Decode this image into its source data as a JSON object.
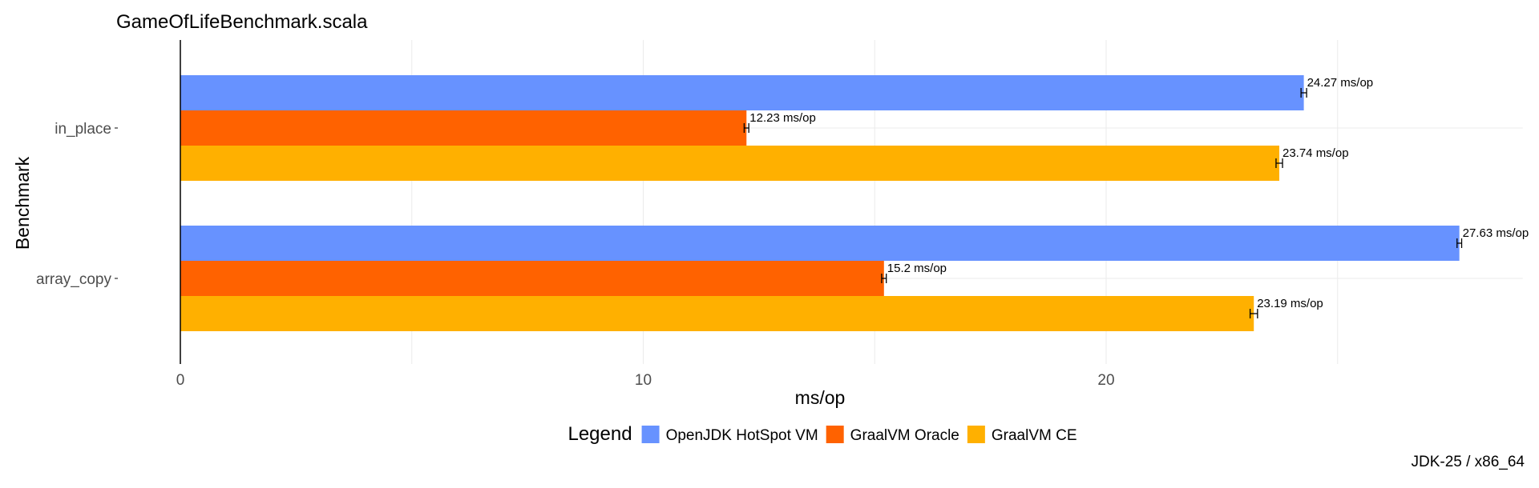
{
  "chart_data": {
    "type": "bar",
    "orientation": "horizontal",
    "title": "GameOfLifeBenchmark.scala",
    "xlabel": "ms/op",
    "ylabel": "Benchmark",
    "xlim": [
      0,
      29
    ],
    "xticks": [
      0,
      10,
      20
    ],
    "categories": [
      "in_place",
      "array_copy"
    ],
    "series": [
      {
        "name": "OpenJDK HotSpot VM",
        "color": "#6792FF",
        "values": [
          24.27,
          27.63
        ],
        "error": [
          0.06,
          0.05
        ],
        "labels": [
          "24.27 ms/op",
          "27.63 ms/op"
        ]
      },
      {
        "name": "GraalVM Oracle",
        "color": "#FF6200",
        "values": [
          12.23,
          15.2
        ],
        "error": [
          0.05,
          0.05
        ],
        "labels": [
          "12.23 ms/op",
          "15.2 ms/op"
        ]
      },
      {
        "name": "GraalVM CE",
        "color": "#FFB000",
        "values": [
          23.74,
          23.19
        ],
        "error": [
          0.07,
          0.08
        ],
        "labels": [
          "23.74 ms/op",
          "23.19 ms/op"
        ]
      }
    ],
    "legend": {
      "title": "Legend",
      "position": "bottom"
    },
    "grid": true,
    "caption": "JDK-25 / x86_64"
  }
}
